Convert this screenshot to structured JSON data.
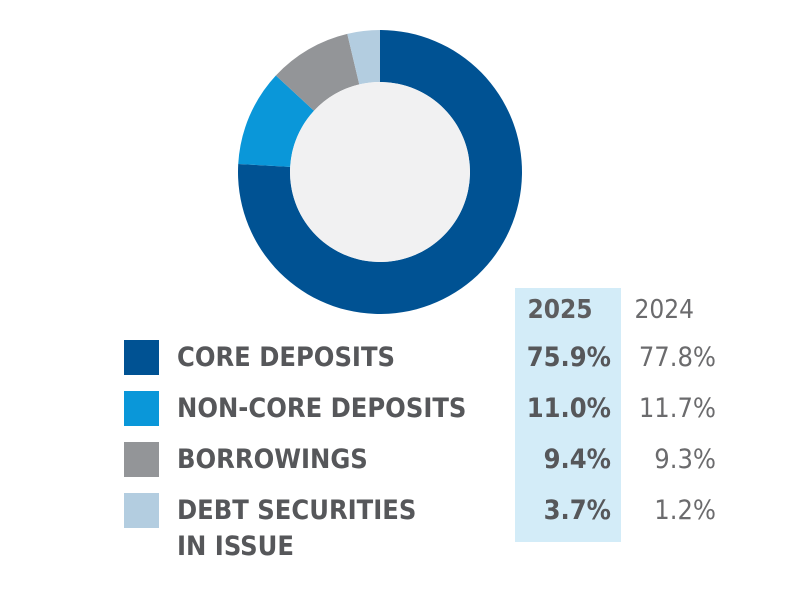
{
  "chart_data": {
    "type": "pie",
    "style": "donut",
    "current_year": "2025",
    "prior_year": "2024",
    "series": [
      {
        "name": "CORE DEPOSITS",
        "value": 75.9,
        "current": "75.9%",
        "prior": "77.8%",
        "color": "#005293"
      },
      {
        "name": "NON-CORE DEPOSITS",
        "value": 11.0,
        "current": "11.0%",
        "prior": "11.7%",
        "color": "#0a97d9"
      },
      {
        "name": "BORROWINGS",
        "value": 9.4,
        "current": "9.4%",
        "prior": "9.3%",
        "color": "#939598"
      },
      {
        "name": "DEBT SECURITIES IN ISSUE",
        "value": 3.7,
        "current": "3.7%",
        "prior": "1.2%",
        "color": "#b3cde0"
      }
    ],
    "donut_colors": {
      "hole": "#f1f1f2",
      "highlight_column": "#d3ecf8"
    }
  }
}
